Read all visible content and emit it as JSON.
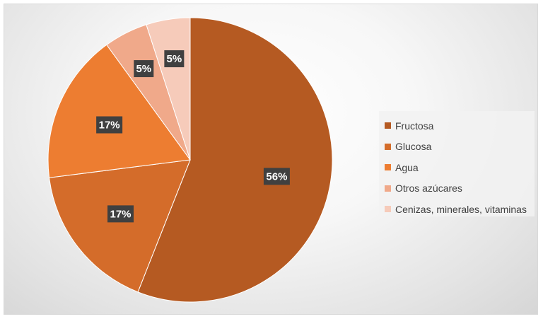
{
  "chart_data": {
    "type": "pie",
    "categories": [
      "Fructosa",
      "Glucosa",
      "Agua",
      "Otros azúcares",
      "Cenizas, minerales, vitaminas"
    ],
    "values": [
      56,
      17,
      17,
      5,
      5
    ],
    "value_labels": [
      "56%",
      "17%",
      "17%",
      "5%",
      "5%"
    ],
    "colors": [
      "#b55a22",
      "#d46c2a",
      "#ed7d31",
      "#f0a98a",
      "#f6cbba"
    ],
    "legend_position": "right",
    "start_angle": "12 o'clock",
    "direction": "clockwise"
  }
}
